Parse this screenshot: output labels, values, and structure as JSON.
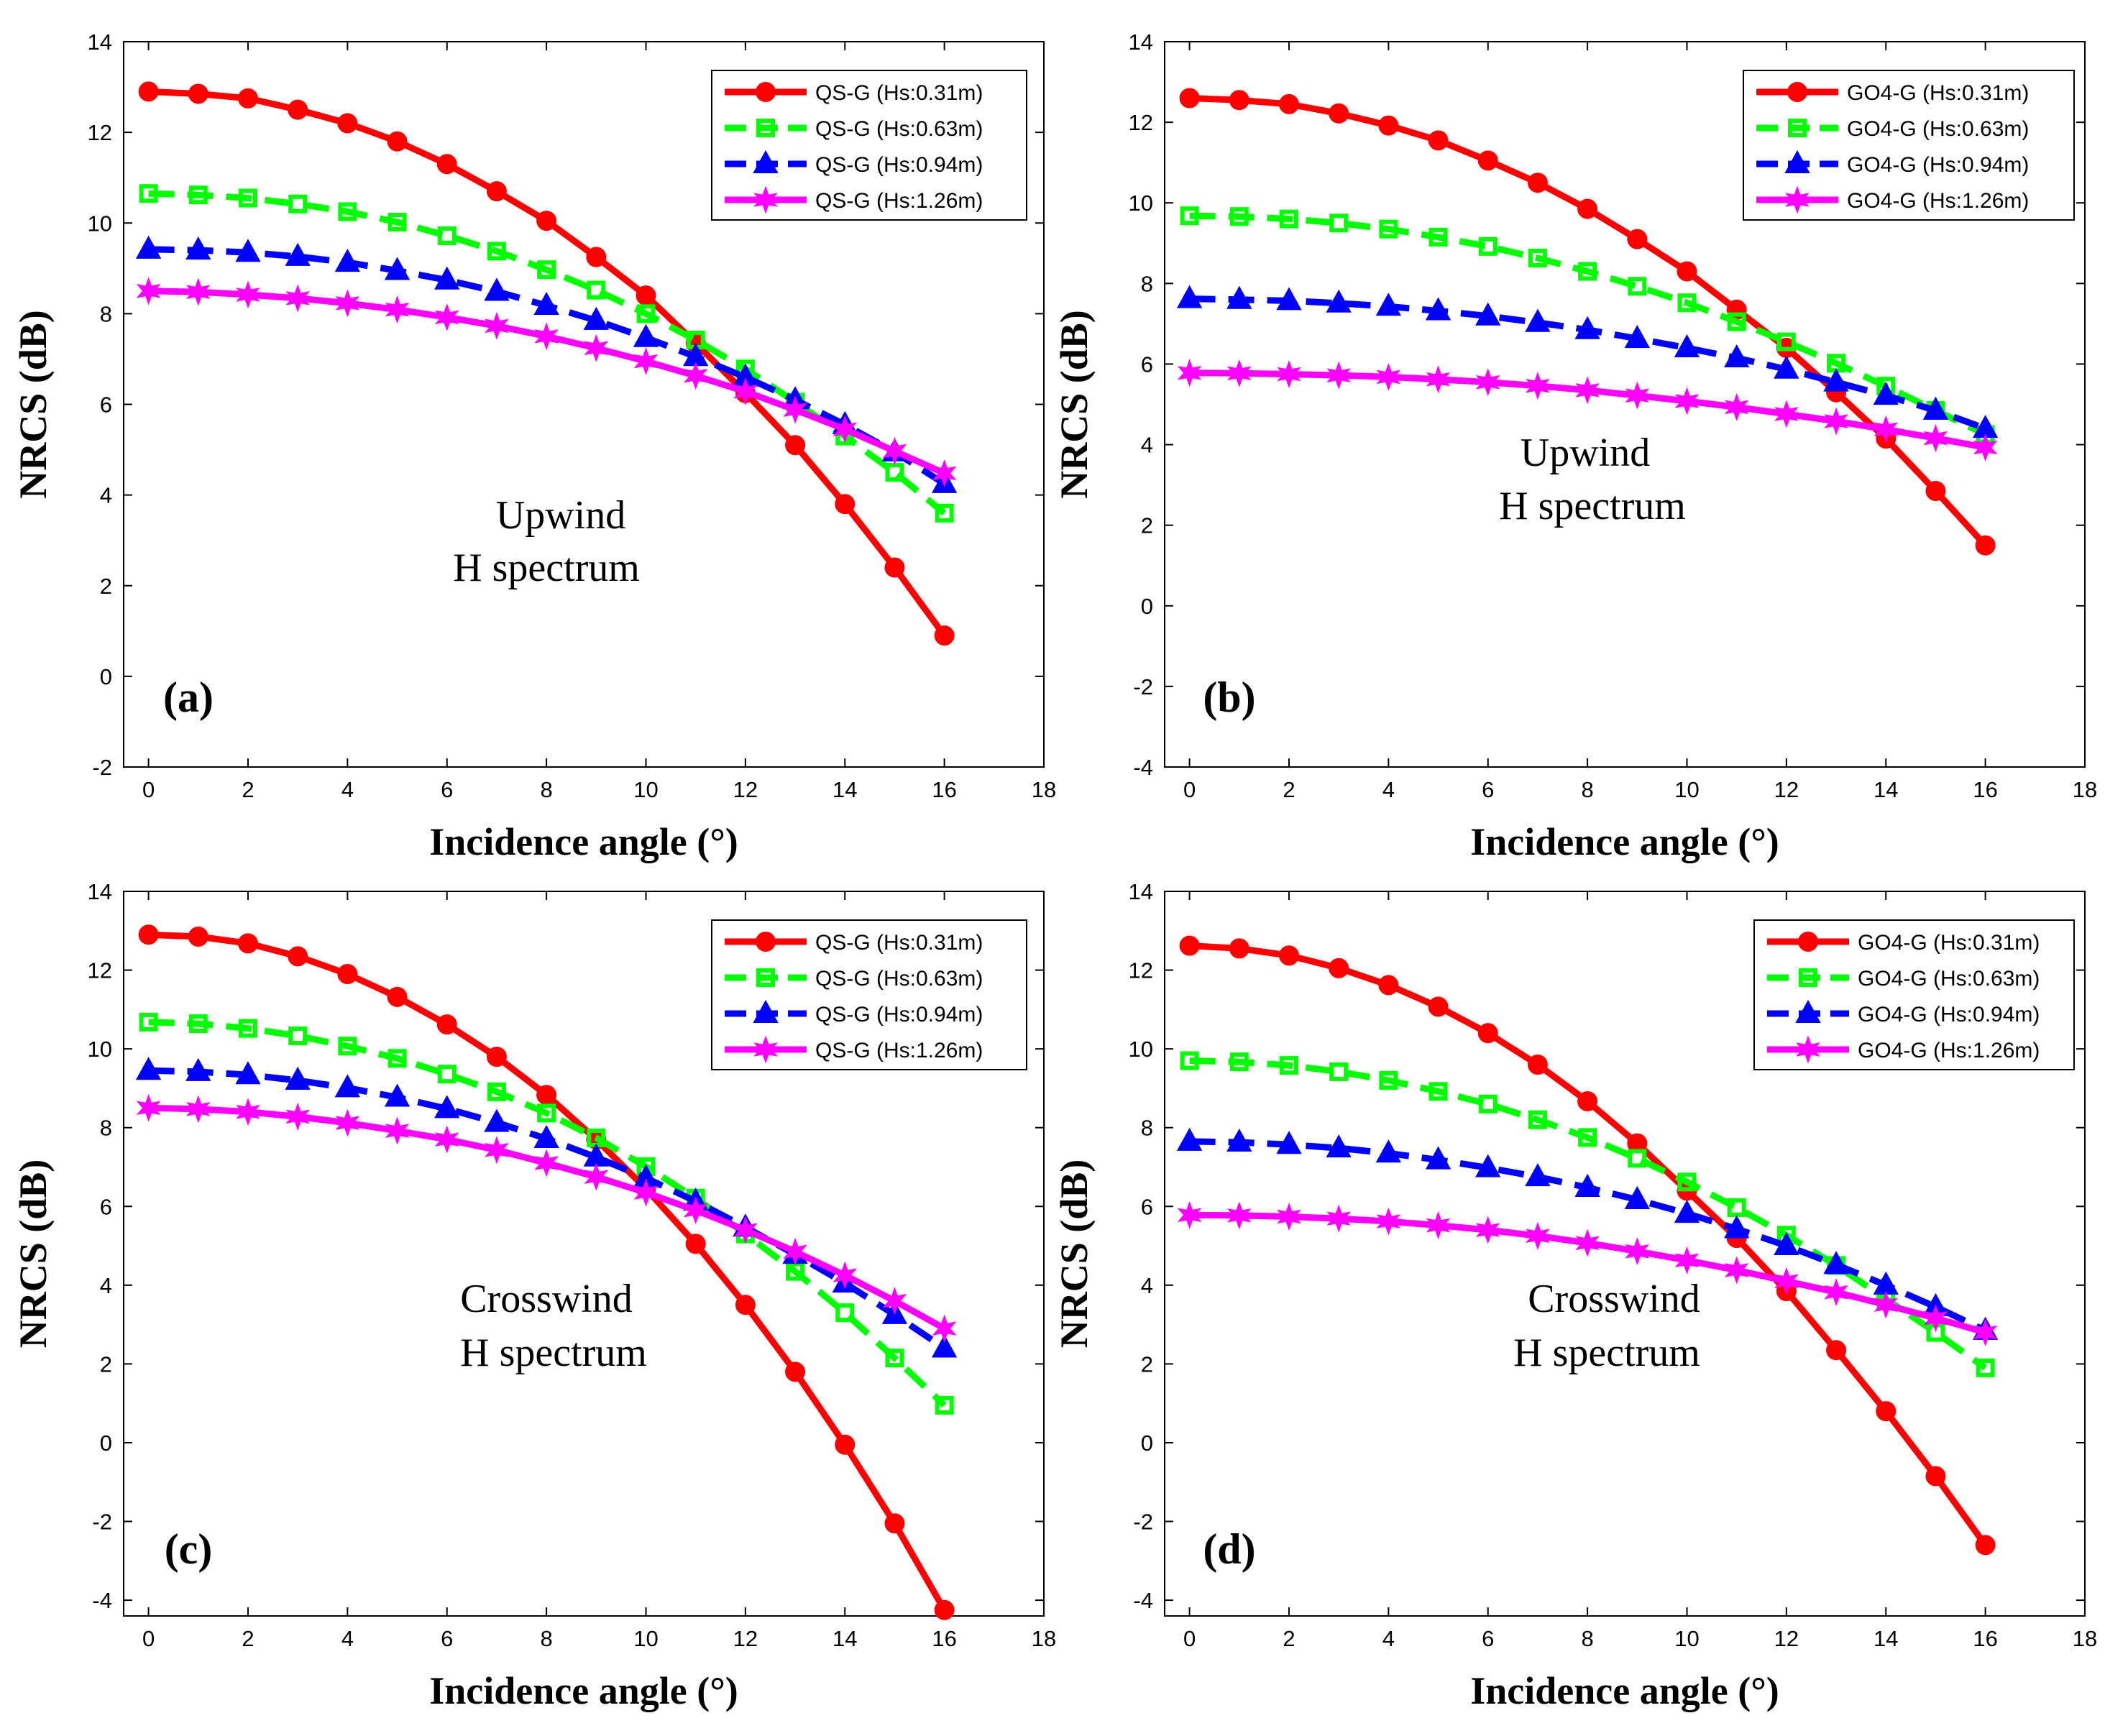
{
  "chart_data": [
    {
      "type": "line",
      "panel_label": "(a)",
      "annotation": [
        "Upwind",
        "H spectrum"
      ],
      "xlabel": "Incidence angle (°)",
      "ylabel": "NRCS (dB)",
      "xlim": [
        -0.5,
        18
      ],
      "ylim": [
        -2,
        14
      ],
      "xticks": [
        0,
        2,
        4,
        6,
        8,
        10,
        12,
        14,
        16,
        18
      ],
      "yticks": [
        -2,
        0,
        2,
        4,
        6,
        8,
        10,
        12,
        14
      ],
      "grid": false,
      "legend": "top-right",
      "x": [
        0,
        1,
        2,
        3,
        4,
        5,
        6,
        7,
        8,
        9,
        10,
        11,
        12,
        13,
        14,
        15,
        16
      ],
      "series": [
        {
          "name": "QS-G (Hs:0.31m)",
          "color": "#ff0000",
          "marker": "circle",
          "dash": "solid",
          "values": [
            12.9,
            12.85,
            12.75,
            12.5,
            12.2,
            11.8,
            11.3,
            10.7,
            10.05,
            9.25,
            8.4,
            7.35,
            6.25,
            5.1,
            3.8,
            2.4,
            0.9
          ]
        },
        {
          "name": "QS-G (Hs:0.63m)",
          "color": "#00ff00",
          "marker": "square",
          "dash": "dash",
          "values": [
            10.65,
            10.62,
            10.55,
            10.42,
            10.25,
            10.02,
            9.72,
            9.38,
            8.97,
            8.52,
            8.0,
            7.42,
            6.78,
            6.05,
            5.3,
            4.5,
            3.6
          ]
        },
        {
          "name": "QS-G (Hs:0.94m)",
          "color": "#0000ff",
          "marker": "triangle",
          "dash": "dash",
          "values": [
            9.42,
            9.4,
            9.35,
            9.26,
            9.13,
            8.95,
            8.74,
            8.49,
            8.18,
            7.85,
            7.47,
            7.05,
            6.6,
            6.1,
            5.55,
            4.95,
            4.25
          ]
        },
        {
          "name": "QS-G (Hs:1.26m)",
          "color": "#ff00ff",
          "marker": "star",
          "dash": "solid",
          "values": [
            8.5,
            8.48,
            8.42,
            8.34,
            8.23,
            8.09,
            7.92,
            7.73,
            7.5,
            7.24,
            6.95,
            6.63,
            6.28,
            5.88,
            5.45,
            4.97,
            4.48
          ]
        }
      ]
    },
    {
      "type": "line",
      "panel_label": "(b)",
      "annotation": [
        "Upwind",
        "H spectrum"
      ],
      "xlabel": "Incidence angle (°)",
      "ylabel": "NRCS (dB)",
      "xlim": [
        -0.5,
        18
      ],
      "ylim": [
        -4,
        14
      ],
      "xticks": [
        0,
        2,
        4,
        6,
        8,
        10,
        12,
        14,
        16,
        18
      ],
      "yticks": [
        -4,
        -2,
        0,
        2,
        4,
        6,
        8,
        10,
        12,
        14
      ],
      "grid": false,
      "legend": "top-right",
      "x": [
        0,
        1,
        2,
        3,
        4,
        5,
        6,
        7,
        8,
        9,
        10,
        11,
        12,
        13,
        14,
        15,
        16
      ],
      "series": [
        {
          "name": "GO4-G (Hs:0.31m)",
          "color": "#ff0000",
          "marker": "circle",
          "dash": "solid",
          "values": [
            12.6,
            12.55,
            12.45,
            12.22,
            11.92,
            11.55,
            11.05,
            10.5,
            9.85,
            9.1,
            8.3,
            7.35,
            6.4,
            5.3,
            4.15,
            2.85,
            1.5
          ]
        },
        {
          "name": "GO4-G (Hs:0.63m)",
          "color": "#00ff00",
          "marker": "square",
          "dash": "dash",
          "values": [
            9.68,
            9.66,
            9.6,
            9.5,
            9.35,
            9.15,
            8.92,
            8.63,
            8.3,
            7.93,
            7.52,
            7.05,
            6.55,
            6.02,
            5.45,
            4.85,
            4.25
          ]
        },
        {
          "name": "GO4-G (Hs:0.94m)",
          "color": "#0000ff",
          "marker": "triangle",
          "dash": "dash",
          "values": [
            7.62,
            7.6,
            7.57,
            7.51,
            7.43,
            7.32,
            7.19,
            7.03,
            6.85,
            6.63,
            6.4,
            6.15,
            5.87,
            5.55,
            5.22,
            4.85,
            4.4
          ]
        },
        {
          "name": "GO4-G (Hs:1.26m)",
          "color": "#ff00ff",
          "marker": "star",
          "dash": "solid",
          "values": [
            5.78,
            5.77,
            5.75,
            5.72,
            5.68,
            5.62,
            5.55,
            5.46,
            5.35,
            5.22,
            5.08,
            4.93,
            4.76,
            4.58,
            4.38,
            4.16,
            3.93
          ]
        }
      ]
    },
    {
      "type": "line",
      "panel_label": "(c)",
      "annotation": [
        "Crosswind",
        "H spectrum"
      ],
      "xlabel": "Incidence angle (°)",
      "ylabel": "NRCS (dB)",
      "xlim": [
        -0.5,
        18
      ],
      "ylim": [
        -4.4,
        14
      ],
      "xticks": [
        0,
        2,
        4,
        6,
        8,
        10,
        12,
        14,
        16,
        18
      ],
      "yticks": [
        -4,
        -2,
        0,
        2,
        4,
        6,
        8,
        10,
        12,
        14
      ],
      "grid": false,
      "legend": "top-right",
      "x": [
        0,
        1,
        2,
        3,
        4,
        5,
        6,
        7,
        8,
        9,
        10,
        11,
        12,
        13,
        14,
        15,
        16
      ],
      "series": [
        {
          "name": "QS-G (Hs:0.31m)",
          "color": "#ff0000",
          "marker": "circle",
          "dash": "solid",
          "values": [
            12.9,
            12.85,
            12.68,
            12.35,
            11.9,
            11.32,
            10.62,
            9.8,
            8.83,
            7.7,
            6.45,
            5.05,
            3.5,
            1.8,
            -0.05,
            -2.05,
            -4.25
          ]
        },
        {
          "name": "QS-G (Hs:0.63m)",
          "color": "#00ff00",
          "marker": "square",
          "dash": "dash",
          "values": [
            10.68,
            10.64,
            10.52,
            10.33,
            10.07,
            9.76,
            9.36,
            8.91,
            8.37,
            7.74,
            7.01,
            6.21,
            5.3,
            4.35,
            3.3,
            2.15,
            0.95
          ]
        },
        {
          "name": "QS-G (Hs:0.94m)",
          "color": "#0000ff",
          "marker": "triangle",
          "dash": "dash",
          "values": [
            9.45,
            9.42,
            9.34,
            9.2,
            9.01,
            8.77,
            8.48,
            8.13,
            7.72,
            7.25,
            6.72,
            6.13,
            5.47,
            4.78,
            4.05,
            3.25,
            2.4
          ]
        },
        {
          "name": "QS-G (Hs:1.26m)",
          "color": "#ff00ff",
          "marker": "star",
          "dash": "solid",
          "values": [
            8.5,
            8.47,
            8.4,
            8.28,
            8.12,
            7.92,
            7.7,
            7.43,
            7.1,
            6.75,
            6.35,
            5.9,
            5.4,
            4.85,
            4.25,
            3.6,
            2.9
          ]
        }
      ]
    },
    {
      "type": "line",
      "panel_label": "(d)",
      "annotation": [
        "Crosswind",
        "H spectrum"
      ],
      "xlabel": "Incidence angle (°)",
      "ylabel": "NRCS (dB)",
      "xlim": [
        -0.5,
        18
      ],
      "ylim": [
        -4.4,
        14
      ],
      "xticks": [
        0,
        2,
        4,
        6,
        8,
        10,
        12,
        14,
        16,
        18
      ],
      "yticks": [
        -4,
        -2,
        0,
        2,
        4,
        6,
        8,
        10,
        12,
        14
      ],
      "grid": false,
      "legend": "top-right",
      "x": [
        0,
        1,
        2,
        3,
        4,
        5,
        6,
        7,
        8,
        9,
        10,
        11,
        12,
        13,
        14,
        15,
        16
      ],
      "series": [
        {
          "name": "GO4-G (Hs:0.31m)",
          "color": "#ff0000",
          "marker": "circle",
          "dash": "solid",
          "values": [
            12.62,
            12.55,
            12.37,
            12.05,
            11.62,
            11.07,
            10.4,
            9.6,
            8.67,
            7.6,
            6.4,
            5.2,
            3.85,
            2.35,
            0.8,
            -0.85,
            -2.6
          ]
        },
        {
          "name": "GO4-G (Hs:0.63m)",
          "color": "#00ff00",
          "marker": "square",
          "dash": "dash",
          "values": [
            9.7,
            9.67,
            9.58,
            9.42,
            9.2,
            8.92,
            8.6,
            8.2,
            7.75,
            7.22,
            6.62,
            5.97,
            5.27,
            4.5,
            3.65,
            2.8,
            1.9
          ]
        },
        {
          "name": "GO4-G (Hs:0.94m)",
          "color": "#0000ff",
          "marker": "triangle",
          "dash": "dash",
          "values": [
            7.65,
            7.63,
            7.57,
            7.48,
            7.35,
            7.18,
            6.98,
            6.75,
            6.48,
            6.17,
            5.82,
            5.43,
            5.0,
            4.52,
            4.0,
            3.45,
            2.85
          ]
        },
        {
          "name": "GO4-G (Hs:1.26m)",
          "color": "#ff00ff",
          "marker": "star",
          "dash": "solid",
          "values": [
            5.78,
            5.77,
            5.74,
            5.69,
            5.62,
            5.52,
            5.4,
            5.25,
            5.07,
            4.86,
            4.63,
            4.38,
            4.1,
            3.82,
            3.5,
            3.16,
            2.8
          ]
        }
      ]
    }
  ]
}
